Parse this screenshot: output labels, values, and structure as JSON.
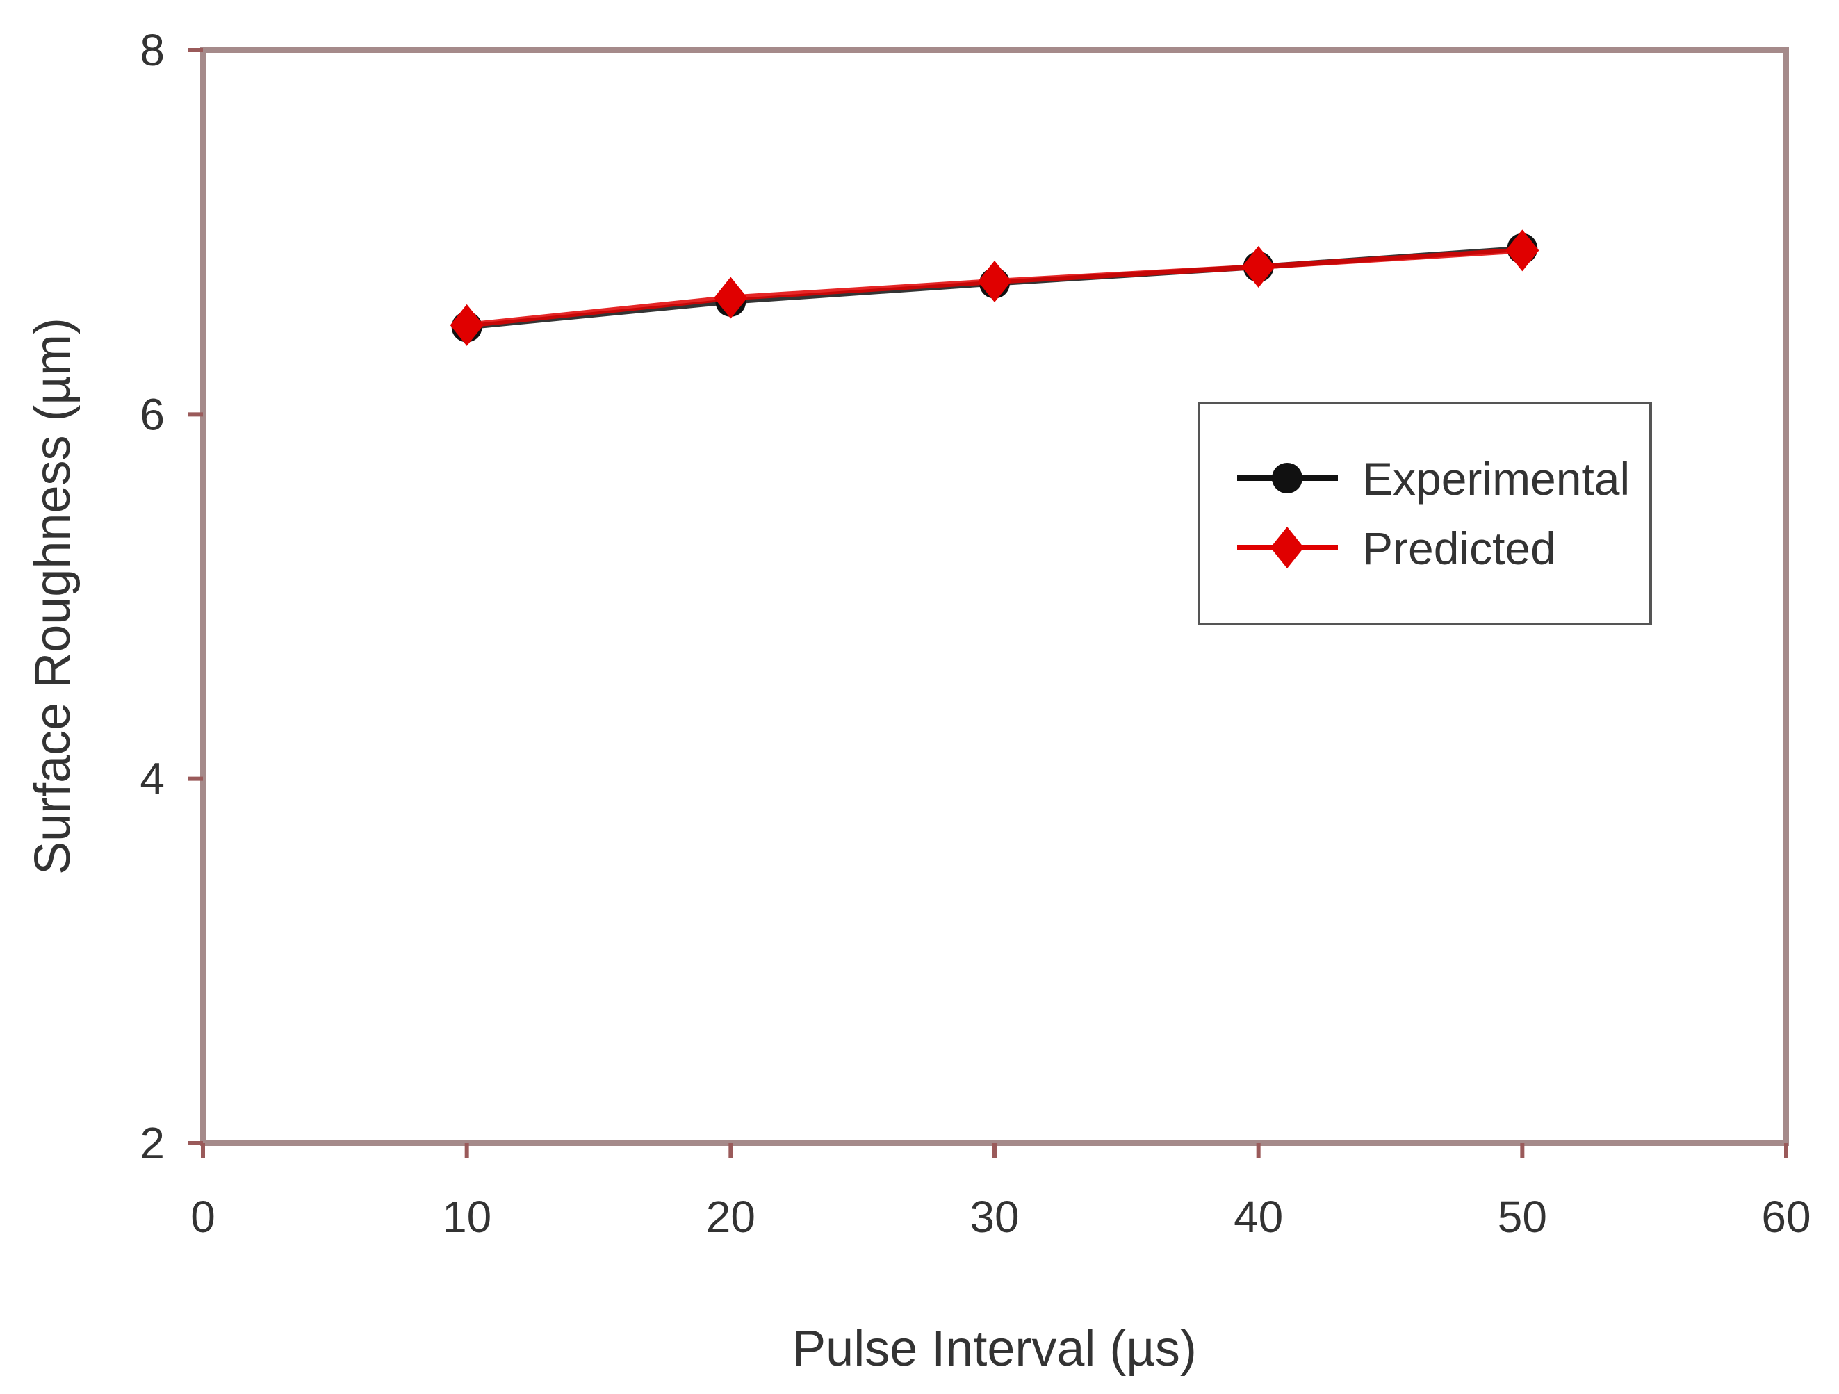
{
  "chart_data": {
    "type": "line",
    "title": "",
    "xlabel": "Pulse Interval (µs)",
    "ylabel": "Surface Roughness (µm)",
    "xlim": [
      0,
      60
    ],
    "ylim": [
      2,
      8
    ],
    "x_ticks": [
      "0",
      "10",
      "20",
      "30",
      "40",
      "50",
      "60"
    ],
    "y_ticks": [
      "2",
      "4",
      "6",
      "8"
    ],
    "grid": false,
    "legend_position": "right",
    "x": [
      10,
      20,
      30,
      40,
      50
    ],
    "series": [
      {
        "name": "Experimental",
        "values": [
          6.48,
          6.62,
          6.72,
          6.81,
          6.91
        ],
        "color": "#111111",
        "marker": "circle"
      },
      {
        "name": "Predicted",
        "values": [
          6.49,
          6.64,
          6.73,
          6.81,
          6.9
        ],
        "color": "#e00000",
        "marker": "diamond"
      }
    ],
    "colors": {
      "axis": "#9a5a5a",
      "frame": "#a58a8a"
    }
  }
}
